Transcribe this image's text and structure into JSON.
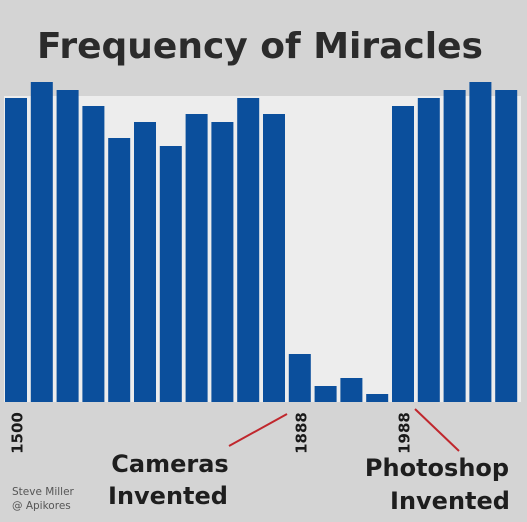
{
  "chart_data": {
    "type": "bar",
    "title": "Frequency of Miracles",
    "series": [
      {
        "values": [
          38,
          40,
          39,
          37,
          33,
          35,
          32,
          36,
          35,
          38,
          36,
          6,
          2,
          3,
          1,
          37,
          38,
          39,
          40,
          39
        ]
      }
    ],
    "ylim": [
      0,
      40
    ],
    "grid": false,
    "legend": "none",
    "x_tick_labels": [
      {
        "index": 0,
        "label": "1500"
      },
      {
        "index": 11,
        "label": "1888"
      },
      {
        "index": 15,
        "label": "1988"
      }
    ],
    "annotations": [
      {
        "lines": [
          "Cameras",
          "Invented"
        ],
        "points_to": "1888"
      },
      {
        "lines": [
          "Photoshop",
          "Invented"
        ],
        "points_to": "1988"
      }
    ]
  },
  "credit": {
    "author": "Steve Miller",
    "handle": "@ Apikores"
  },
  "colors": {
    "bar": "#0b4f9c",
    "plot_background": "#ededed",
    "page_background": "#d4d4d4",
    "arrow": "#c0272d"
  }
}
